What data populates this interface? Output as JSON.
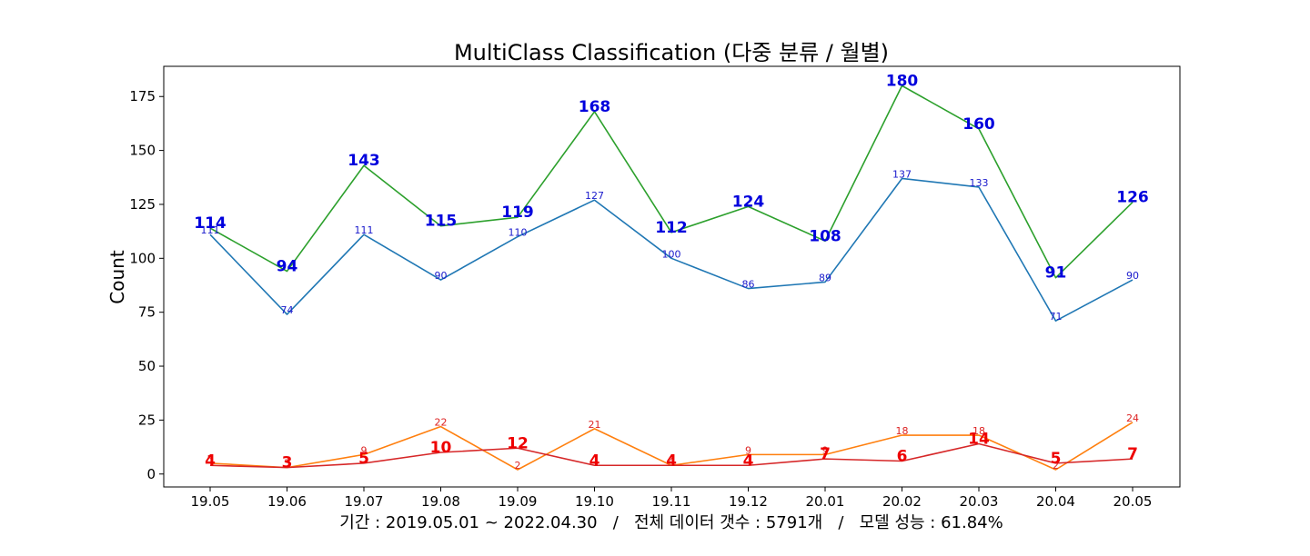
{
  "chart_data": {
    "type": "line",
    "title": "MultiClass Classification (다중 분류 / 월별)",
    "xlabel": "",
    "ylabel": "Count",
    "caption": "기간 : 2019.05.01 ~ 2022.04.30   /   전체 데이터 갯수 : 5791개   /   모델 성능 : 61.84%",
    "categories": [
      "19.05",
      "19.06",
      "19.07",
      "19.08",
      "19.09",
      "19.10",
      "19.11",
      "19.12",
      "20.01",
      "20.02",
      "20.03",
      "20.04",
      "20.05"
    ],
    "ylim": [
      -6,
      189
    ],
    "yticks": [
      0,
      25,
      50,
      75,
      100,
      125,
      150,
      175
    ],
    "grid": false,
    "series": [
      {
        "values": [
          111,
          74,
          111,
          90,
          110,
          127,
          100,
          86,
          89,
          137,
          133,
          71,
          90
        ],
        "color": "#1f77b4",
        "label_color": "#1a1acc",
        "label_style": "small"
      },
      {
        "values": [
          114,
          94,
          143,
          115,
          119,
          168,
          112,
          124,
          108,
          180,
          160,
          91,
          126
        ],
        "color": "#2ca02c",
        "label_color": "#0000dd",
        "label_style": "big"
      },
      {
        "values": [
          5,
          3,
          9,
          22,
          2,
          21,
          4,
          9,
          9,
          18,
          18,
          2,
          24
        ],
        "color": "#ff7f0e",
        "label_color": "#dd2222",
        "label_style": "small"
      },
      {
        "values": [
          4,
          3,
          5,
          10,
          12,
          4,
          4,
          4,
          7,
          6,
          14,
          5,
          7
        ],
        "color": "#d62728",
        "label_color": "#ee0000",
        "label_style": "big"
      }
    ]
  }
}
